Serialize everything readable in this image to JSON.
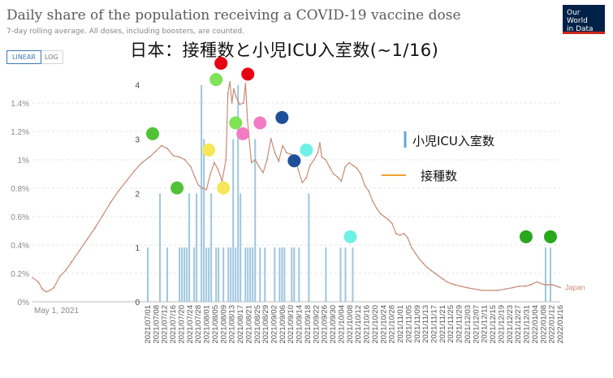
{
  "header": {
    "title": "Daily share of the population receiving a COVID-19 vaccine dose",
    "subtitle": "7-day rolling average. All doses, including boosters, are counted.",
    "logo": [
      "Our World",
      "in Data"
    ],
    "overlay_title": "日本：接種数と小児ICU入室数(~1/16)"
  },
  "toggle": {
    "linear": "LINEAR",
    "log": "LOG"
  },
  "colors": {
    "line": "#c88a77",
    "bar": "#9ec6df",
    "axis": "#999999",
    "grid": "#dddddd"
  },
  "chart_data": {
    "type": "bar+line",
    "owid_series": {
      "name": "Japan",
      "ylim": [
        0,
        1.6
      ],
      "y_ticks": [
        "0%",
        "0.2%",
        "0.4%",
        "0.6%",
        "0.8%",
        "1%",
        "1.2%",
        "1.4%"
      ],
      "x_tick": "May 1, 2021",
      "points": [
        [
          0,
          0.17
        ],
        [
          3,
          0.14
        ],
        [
          5,
          0.09
        ],
        [
          7,
          0.07
        ],
        [
          9,
          0.08
        ],
        [
          11,
          0.1
        ],
        [
          14,
          0.18
        ],
        [
          17,
          0.22
        ],
        [
          20,
          0.28
        ],
        [
          24,
          0.36
        ],
        [
          28,
          0.44
        ],
        [
          32,
          0.52
        ],
        [
          36,
          0.61
        ],
        [
          40,
          0.7
        ],
        [
          44,
          0.78
        ],
        [
          48,
          0.85
        ],
        [
          52,
          0.92
        ],
        [
          56,
          0.98
        ],
        [
          60,
          1.02
        ],
        [
          63,
          1.06
        ],
        [
          66,
          1.1
        ],
        [
          69,
          1.08
        ],
        [
          72,
          1.03
        ],
        [
          75,
          1.02
        ],
        [
          78,
          1.0
        ],
        [
          81,
          0.95
        ],
        [
          83,
          0.88
        ],
        [
          85,
          0.82
        ],
        [
          87,
          0.8
        ],
        [
          89,
          0.79
        ],
        [
          91,
          0.9
        ],
        [
          93,
          0.98
        ],
        [
          95,
          0.93
        ],
        [
          97,
          0.85
        ],
        [
          99,
          1.0
        ],
        [
          100,
          1.47
        ],
        [
          101,
          1.55
        ],
        [
          102,
          1.4
        ],
        [
          103,
          1.5
        ],
        [
          104,
          1.45
        ],
        [
          106,
          1.39
        ],
        [
          108,
          1.4
        ],
        [
          109,
          1.54
        ],
        [
          110,
          1.28
        ],
        [
          112,
          0.98
        ],
        [
          114,
          1.0
        ],
        [
          116,
          0.95
        ],
        [
          118,
          0.91
        ],
        [
          120,
          1.0
        ],
        [
          122,
          1.15
        ],
        [
          124,
          1.05
        ],
        [
          126,
          0.99
        ],
        [
          128,
          1.1
        ],
        [
          130,
          1.05
        ],
        [
          132,
          1.04
        ],
        [
          134,
          1.03
        ],
        [
          136,
          0.93
        ],
        [
          138,
          0.84
        ],
        [
          140,
          0.87
        ],
        [
          142,
          0.96
        ],
        [
          144,
          1.0
        ],
        [
          146,
          1.05
        ],
        [
          147,
          1.12
        ],
        [
          148,
          1.02
        ],
        [
          150,
          1.0
        ],
        [
          152,
          0.95
        ],
        [
          154,
          0.9
        ],
        [
          156,
          0.88
        ],
        [
          158,
          0.85
        ],
        [
          160,
          0.95
        ],
        [
          162,
          0.98
        ],
        [
          164,
          0.96
        ],
        [
          166,
          0.94
        ],
        [
          168,
          0.9
        ],
        [
          170,
          0.82
        ],
        [
          172,
          0.78
        ],
        [
          174,
          0.71
        ],
        [
          176,
          0.66
        ],
        [
          178,
          0.62
        ],
        [
          180,
          0.6
        ],
        [
          182,
          0.58
        ],
        [
          184,
          0.55
        ],
        [
          186,
          0.48
        ],
        [
          188,
          0.47
        ],
        [
          190,
          0.48
        ],
        [
          192,
          0.45
        ],
        [
          194,
          0.38
        ],
        [
          196,
          0.34
        ],
        [
          198,
          0.3
        ],
        [
          200,
          0.27
        ],
        [
          202,
          0.24
        ],
        [
          204,
          0.22
        ],
        [
          206,
          0.2
        ],
        [
          208,
          0.18
        ],
        [
          210,
          0.16
        ],
        [
          212,
          0.14
        ],
        [
          214,
          0.13
        ],
        [
          216,
          0.12
        ],
        [
          219,
          0.11
        ],
        [
          222,
          0.1
        ],
        [
          226,
          0.09
        ],
        [
          230,
          0.08
        ],
        [
          234,
          0.08
        ],
        [
          238,
          0.08
        ],
        [
          242,
          0.09
        ],
        [
          246,
          0.1
        ],
        [
          249,
          0.11
        ],
        [
          252,
          0.11
        ],
        [
          255,
          0.12
        ],
        [
          258,
          0.14
        ],
        [
          260,
          0.13
        ],
        [
          262,
          0.12
        ],
        [
          264,
          0.12
        ],
        [
          266,
          0.12
        ],
        [
          268,
          0.11
        ],
        [
          270,
          0.1
        ]
      ],
      "label": "Japan"
    },
    "icu_series": {
      "name": "小児ICU入室数",
      "ylim": [
        0,
        4.4
      ],
      "y_ticks": [
        "0",
        "1",
        "2",
        "3",
        "4"
      ],
      "x_categories": [
        "2021/07/01",
        "2021/07/08",
        "2021/07/12",
        "2021/07/16",
        "2021/07/20",
        "2021/07/24",
        "2021/07/28",
        "2021/08/01",
        "2021/08/05",
        "2021/08/09",
        "2021/08/13",
        "2021/08/17",
        "2021/08/21",
        "2021/08/25",
        "2021/08/29",
        "2021/09/02",
        "2021/09/06",
        "2021/09/10",
        "2021/09/14",
        "2021/09/18",
        "2021/09/22",
        "2021/09/26",
        "2021/09/30",
        "2021/10/04",
        "2021/10/08",
        "2021/10/12",
        "2021/10/16",
        "2021/10/20",
        "2021/10/24",
        "2021/10/28",
        "2021/11/01",
        "2021/11/05",
        "2021/11/09",
        "2021/11/13",
        "2021/11/17",
        "2021/11/21",
        "2021/11/25",
        "2021/11/29",
        "2021/12/03",
        "2021/12/07",
        "2021/12/11",
        "2021/12/15",
        "2021/12/19",
        "2021/12/23",
        "2021/12/27",
        "2021/12/31",
        "2022/01/04",
        "2022/01/08",
        "2022/01/12",
        "2022/01/16"
      ],
      "bars": [
        [
          0,
          1
        ],
        [
          5,
          2
        ],
        [
          8,
          1
        ],
        [
          13,
          1
        ],
        [
          14,
          1
        ],
        [
          15,
          1
        ],
        [
          16,
          1
        ],
        [
          17,
          2
        ],
        [
          19,
          1
        ],
        [
          20,
          2
        ],
        [
          22,
          4
        ],
        [
          23,
          3
        ],
        [
          24,
          1
        ],
        [
          25,
          1
        ],
        [
          26,
          2
        ],
        [
          28,
          1
        ],
        [
          29,
          1
        ],
        [
          31,
          1
        ],
        [
          33,
          1
        ],
        [
          34,
          1
        ],
        [
          35,
          3
        ],
        [
          36,
          1
        ],
        [
          37,
          4
        ],
        [
          38,
          2
        ],
        [
          40,
          1
        ],
        [
          41,
          1
        ],
        [
          42,
          1
        ],
        [
          43,
          1
        ],
        [
          44,
          3
        ],
        [
          46,
          1
        ],
        [
          48,
          1
        ],
        [
          52,
          1
        ],
        [
          54,
          1
        ],
        [
          55,
          1
        ],
        [
          56,
          1
        ],
        [
          59,
          1
        ],
        [
          60,
          1
        ],
        [
          62,
          1
        ],
        [
          66,
          2
        ],
        [
          73,
          1
        ],
        [
          79,
          1
        ],
        [
          81,
          1
        ],
        [
          84,
          1
        ],
        [
          163,
          1
        ],
        [
          165,
          1
        ]
      ]
    },
    "dots": [
      {
        "i": 2,
        "v": 3.1,
        "color": "#4fc238"
      },
      {
        "i": 12,
        "v": 2.1,
        "color": "#4fc238"
      },
      {
        "i": 25,
        "v": 2.8,
        "color": "#f5e65a"
      },
      {
        "i": 31,
        "v": 2.1,
        "color": "#f5e65a"
      },
      {
        "i": 28,
        "v": 4.1,
        "color": "#7ee356"
      },
      {
        "i": 30,
        "v": 4.4,
        "color": "#e60012"
      },
      {
        "i": 36,
        "v": 3.3,
        "color": "#7ee356"
      },
      {
        "i": 39,
        "v": 3.1,
        "color": "#f27cc4"
      },
      {
        "i": 41,
        "v": 4.2,
        "color": "#e60012"
      },
      {
        "i": 46,
        "v": 3.3,
        "color": "#f27cc4"
      },
      {
        "i": 55,
        "v": 3.4,
        "color": "#1f4e9a"
      },
      {
        "i": 60,
        "v": 2.6,
        "color": "#1f4e9a"
      },
      {
        "i": 65,
        "v": 2.8,
        "color": "#6ff0e6"
      },
      {
        "i": 83,
        "v": 1.2,
        "color": "#6ff0e6"
      },
      {
        "i": 155,
        "v": 1.2,
        "color": "#28a81d"
      },
      {
        "i": 165,
        "v": 1.2,
        "color": "#28a81d"
      }
    ],
    "legend": [
      {
        "label": "小児ICU入室数",
        "color": "#5fa7d9",
        "shape": "bar"
      },
      {
        "label": "接種数",
        "color": "#f0a030",
        "shape": "line"
      }
    ]
  }
}
